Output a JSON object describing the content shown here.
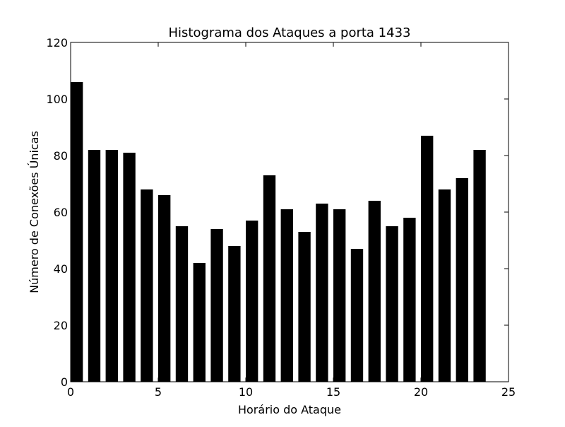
{
  "chart_data": {
    "type": "bar",
    "title": "Histograma dos Ataques a porta 1433",
    "xlabel": "Horário do Ataque",
    "ylabel": "Número de Conexões Únicas",
    "xlim": [
      0,
      25
    ],
    "ylim": [
      0,
      120
    ],
    "x": [
      0,
      1,
      2,
      3,
      4,
      5,
      6,
      7,
      8,
      9,
      10,
      11,
      12,
      13,
      14,
      15,
      16,
      17,
      18,
      19,
      20,
      21,
      22,
      23
    ],
    "values": [
      106,
      82,
      82,
      81,
      68,
      66,
      55,
      42,
      54,
      48,
      57,
      73,
      61,
      53,
      63,
      61,
      47,
      64,
      55,
      58,
      87,
      68,
      72,
      82
    ],
    "bar_width": 0.7,
    "xticks": [
      0,
      5,
      10,
      15,
      20,
      25
    ],
    "yticks": [
      0,
      20,
      40,
      60,
      80,
      100,
      120
    ],
    "bar_color": "#000000",
    "grid": false,
    "legend": "none"
  }
}
